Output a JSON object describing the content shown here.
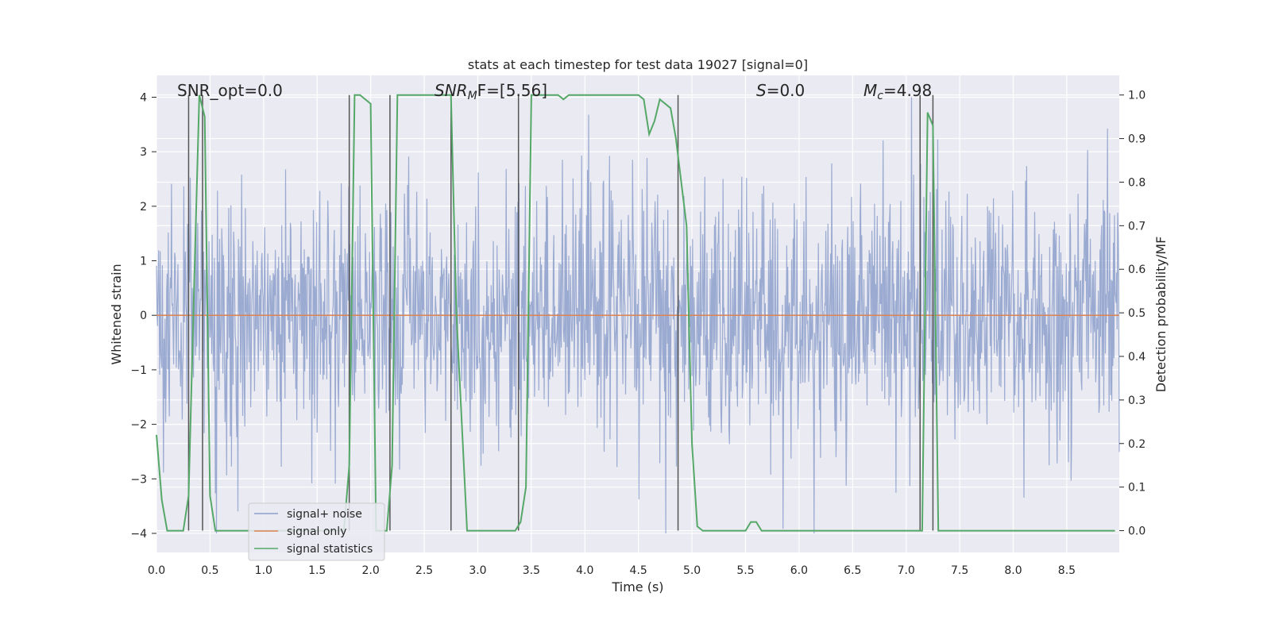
{
  "chart_data": {
    "type": "line",
    "title": "stats at each timestep for test data 19027 [signal=0]",
    "xlabel": "Time (s)",
    "ylabel": "Whitened strain",
    "y2label": "Detection probability/MF",
    "xlim": [
      0.0,
      8.99
    ],
    "ylim": [
      -4.35,
      4.4
    ],
    "y2lim": [
      -0.05,
      1.045
    ],
    "xticks": [
      0.0,
      0.5,
      1.0,
      1.5,
      2.0,
      2.5,
      3.0,
      3.5,
      4.0,
      4.5,
      5.0,
      5.5,
      6.0,
      6.5,
      7.0,
      7.5,
      8.0,
      8.5
    ],
    "xtick_labels": [
      "0.0",
      "0.5",
      "1.0",
      "1.5",
      "2.0",
      "2.5",
      "3.0",
      "3.5",
      "4.0",
      "4.5",
      "5.0",
      "5.5",
      "6.0",
      "6.5",
      "7.0",
      "7.5",
      "8.0",
      "8.5"
    ],
    "yticks": [
      -4,
      -3,
      -2,
      -1,
      0,
      1,
      2,
      3,
      4
    ],
    "ytick_labels": [
      "−4",
      "−3",
      "−2",
      "−1",
      "0",
      "1",
      "2",
      "3",
      "4"
    ],
    "y2ticks": [
      0.0,
      0.1,
      0.2,
      0.3,
      0.4,
      0.5,
      0.6,
      0.7,
      0.8,
      0.9,
      1.0
    ],
    "y2tick_labels": [
      "0.0",
      "0.1",
      "0.2",
      "0.3",
      "0.4",
      "0.5",
      "0.6",
      "0.7",
      "0.8",
      "0.9",
      "1.0"
    ],
    "grid": true,
    "legend_position": "lower-left",
    "annotations": {
      "snr_opt": "SNR_opt=0.0",
      "snr_mf_base": "SNR",
      "snr_mf_sub": "M",
      "snr_mf_tail": "F=[5.56]",
      "s_name": "S",
      "s_value": "=0.0",
      "mc_base": "M",
      "mc_sub": "c",
      "mc_value": "=4.98"
    },
    "series": [
      {
        "name": "signal+ noise",
        "color": "#8c9fcb",
        "description": "whitened noise, approximately ±1 sigma with spikes up to ±4",
        "sigma": 0.75,
        "max_abs": 4.0,
        "sample_rate_hz": 200
      },
      {
        "name": "signal only",
        "color": "#dd8452",
        "x": [
          0.0,
          8.99
        ],
        "y": [
          0.0,
          0.0
        ]
      },
      {
        "name": "signal statistics",
        "color": "#55a868",
        "x": [
          0.0,
          0.05,
          0.1,
          0.25,
          0.3,
          0.35,
          0.4,
          0.45,
          0.5,
          0.55,
          1.75,
          1.8,
          1.85,
          1.9,
          2.0,
          2.05,
          2.15,
          2.2,
          2.25,
          2.3,
          2.75,
          2.8,
          2.9,
          3.35,
          3.4,
          3.45,
          3.5,
          3.75,
          3.8,
          3.85,
          3.9,
          4.5,
          4.55,
          4.6,
          4.65,
          4.7,
          4.75,
          4.8,
          4.85,
          4.95,
          5.0,
          5.05,
          5.1,
          5.5,
          5.55,
          5.6,
          5.65,
          5.7,
          7.15,
          7.2,
          7.25,
          7.3,
          7.35,
          8.95
        ],
        "y": [
          0.22,
          0.07,
          0.0,
          0.0,
          0.08,
          0.55,
          1.0,
          0.95,
          0.08,
          0.0,
          0.0,
          0.15,
          1.0,
          1.0,
          0.98,
          0.0,
          0.0,
          0.15,
          1.0,
          1.0,
          1.0,
          0.5,
          0.0,
          0.0,
          0.02,
          0.1,
          1.0,
          1.0,
          0.99,
          1.0,
          1.0,
          1.0,
          0.99,
          0.91,
          0.94,
          0.99,
          0.98,
          0.97,
          0.9,
          0.7,
          0.2,
          0.01,
          0.0,
          0.0,
          0.02,
          0.02,
          0.0,
          0.0,
          0.0,
          0.96,
          0.93,
          0.0,
          0.0,
          0.0
        ]
      },
      {
        "name": "markers",
        "color": "#555555",
        "description": "vertical black marker lines",
        "x": [
          0.3,
          0.43,
          1.8,
          2.18,
          2.75,
          3.38,
          4.87,
          7.13,
          7.25
        ]
      }
    ]
  }
}
